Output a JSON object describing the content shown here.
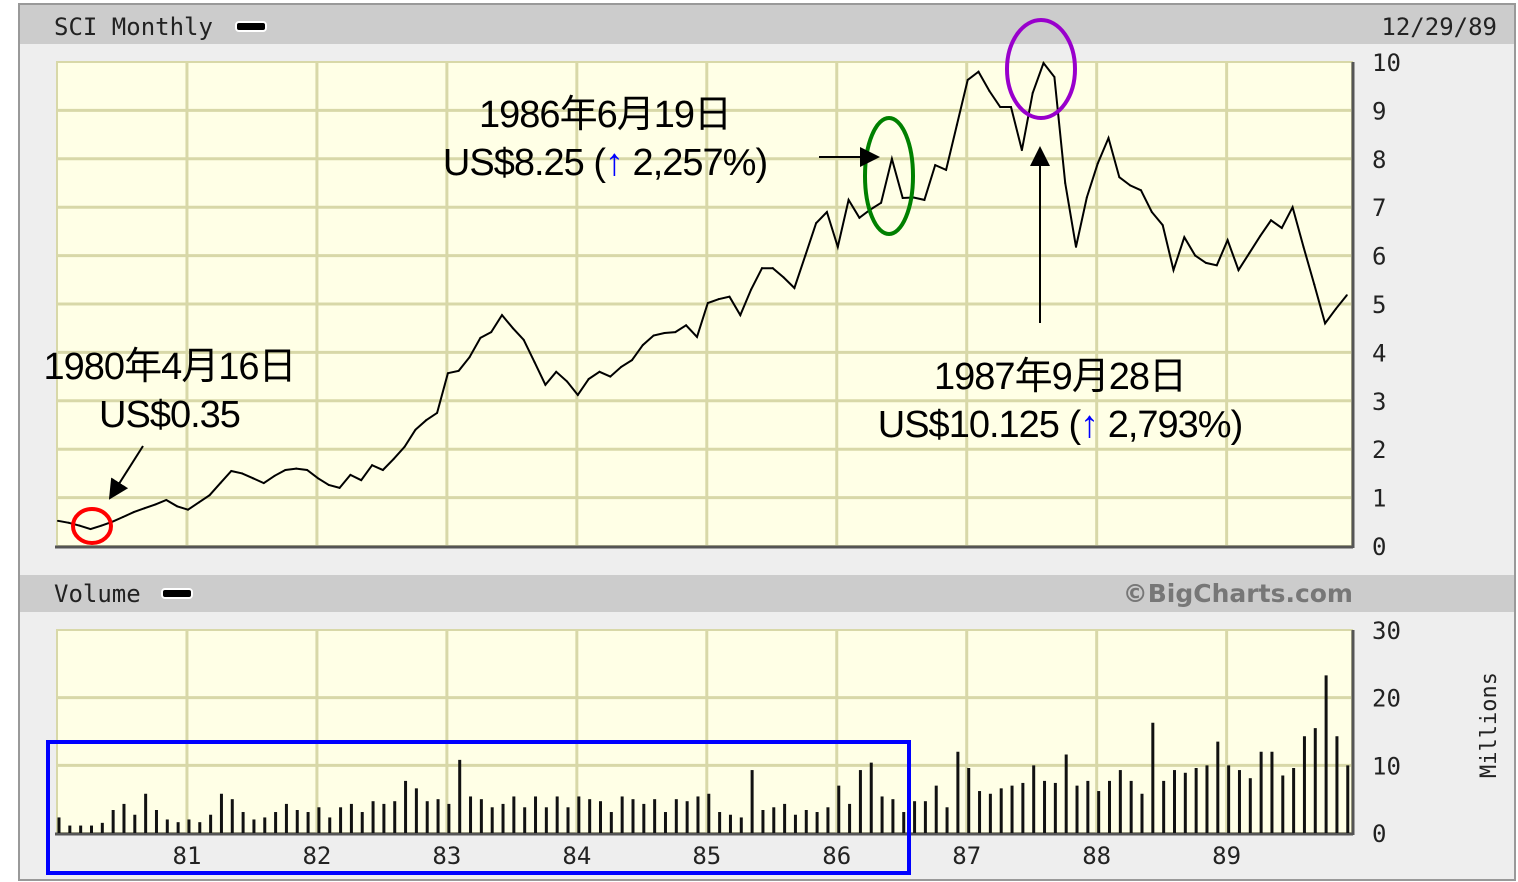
{
  "header": {
    "title": "SCI Monthly",
    "date": "12/29/89"
  },
  "volume_header": {
    "title": "Volume",
    "copyright": "©BigCharts.com"
  },
  "colors": {
    "plot_bg": "#ffffe6",
    "grid": "#d8d8a8",
    "band": "#cccccc",
    "frame_bg": "#eeeeee",
    "line": "#000000",
    "circle_1980": "#ff0000",
    "ellipse_1986": "#008000",
    "ellipse_1987": "#9900cc",
    "highlight_box": "#0000ff",
    "up_arrow": "#0000ff"
  },
  "annotations": {
    "a1980": {
      "date": "1980年4月16日",
      "price": "US$0.35"
    },
    "a1986": {
      "date": "1986年6月19日",
      "price_prefix": "US$8.25 (",
      "up_icon": "↑",
      "change": " 2,257%)"
    },
    "a1987": {
      "date": "1987年9月28日",
      "price_prefix": "US$10.125 (",
      "up_icon": "↑",
      "change": " 2,793%)"
    }
  },
  "chart_data": [
    {
      "type": "line",
      "title": "SCI Monthly",
      "ylim": [
        0,
        10
      ],
      "yticks": [
        "0",
        "1",
        "2",
        "3",
        "4",
        "5",
        "6",
        "7",
        "8",
        "9",
        "10"
      ],
      "xticks": [
        "81",
        "82",
        "83",
        "84",
        "85",
        "86",
        "87",
        "88",
        "89"
      ],
      "grid": true,
      "frequency": "monthly",
      "values_by_year": {
        "1980": [
          0.52,
          0.48,
          0.42,
          0.35,
          0.42,
          0.5,
          0.6,
          0.7,
          0.78,
          0.86,
          0.95,
          0.82
        ],
        "1981": [
          0.75,
          0.9,
          1.05,
          1.3,
          1.55,
          1.5,
          1.4,
          1.3,
          1.45,
          1.57,
          1.6,
          1.57
        ],
        "1982": [
          1.4,
          1.26,
          1.2,
          1.47,
          1.36,
          1.67,
          1.57,
          1.8,
          2.05,
          2.4,
          2.6,
          2.75
        ],
        "1983": [
          3.57,
          3.62,
          3.9,
          4.3,
          4.42,
          4.77,
          4.5,
          4.26,
          3.8,
          3.33,
          3.6,
          3.4
        ],
        "1984": [
          3.12,
          3.45,
          3.6,
          3.5,
          3.7,
          3.84,
          4.15,
          4.35,
          4.4,
          4.42,
          4.56,
          4.32
        ],
        "1985": [
          5.02,
          5.1,
          5.15,
          4.77,
          5.3,
          5.74,
          5.74,
          5.55,
          5.33,
          6.0,
          6.67,
          6.9
        ],
        "1986": [
          6.18,
          7.15,
          6.78,
          6.95,
          7.09,
          8.0,
          7.19,
          7.2,
          7.15,
          7.87,
          7.77,
          8.7
        ],
        "1987": [
          9.63,
          9.8,
          9.4,
          9.07,
          9.07,
          8.18,
          9.36,
          9.98,
          9.69,
          7.5,
          6.18,
          7.2
        ],
        "1988": [
          7.9,
          8.43,
          7.62,
          7.45,
          7.35,
          6.9,
          6.63,
          5.7,
          6.38,
          6.0,
          5.85,
          5.8
        ],
        "1989": [
          6.32,
          5.7,
          6.05,
          6.4,
          6.73,
          6.57,
          7.0,
          6.18,
          5.4,
          4.6,
          4.9,
          5.18
        ]
      }
    },
    {
      "type": "bar",
      "title": "Volume",
      "ylabel": "Millions",
      "ylim": [
        0,
        30
      ],
      "yticks": [
        "0",
        "10",
        "20",
        "30"
      ],
      "xticks": [
        "81",
        "82",
        "83",
        "84",
        "85",
        "86",
        "87",
        "88",
        "89"
      ],
      "grid": true,
      "frequency": "monthly",
      "values_by_year": {
        "1980": [
          2.3,
          1.1,
          1.1,
          1.1,
          1.5,
          3.4,
          4.3,
          2.7,
          5.8,
          3.4,
          2.0,
          1.6
        ],
        "1981": [
          2.0,
          1.6,
          2.7,
          5.8,
          5.0,
          3.1,
          2.0,
          2.3,
          3.1,
          4.3,
          3.4,
          3.1
        ],
        "1982": [
          3.8,
          2.3,
          3.8,
          4.3,
          3.1,
          4.7,
          4.3,
          4.7,
          7.7,
          6.6,
          4.7,
          5.0
        ],
        "1983": [
          4.3,
          10.8,
          5.4,
          5.0,
          3.8,
          4.3,
          5.4,
          3.8,
          5.4,
          3.8,
          5.4,
          3.8
        ],
        "1984": [
          5.4,
          5.0,
          4.7,
          3.1,
          5.4,
          5.0,
          4.3,
          5.0,
          3.1,
          5.0,
          4.7,
          5.4
        ],
        "1985": [
          5.8,
          3.1,
          2.7,
          2.3,
          9.3,
          3.4,
          3.8,
          4.3,
          2.7,
          3.4,
          3.1,
          3.8
        ],
        "1986": [
          7.0,
          4.3,
          9.3,
          10.4,
          5.4,
          5.0,
          3.1,
          4.7,
          4.7,
          7.0,
          3.8,
          12.0
        ],
        "1987": [
          9.6,
          6.2,
          5.8,
          6.6,
          7.0,
          7.4,
          10.0,
          7.7,
          7.4,
          11.6,
          7.0,
          7.7
        ],
        "1988": [
          6.2,
          7.7,
          9.3,
          7.7,
          5.8,
          16.3,
          7.7,
          9.3,
          8.9,
          9.6,
          10.0,
          13.5
        ],
        "1989": [
          10.0,
          9.3,
          8.1,
          12.0,
          12.0,
          8.5,
          9.6,
          14.3,
          15.5,
          23.3,
          14.3,
          10.0
        ]
      }
    }
  ]
}
